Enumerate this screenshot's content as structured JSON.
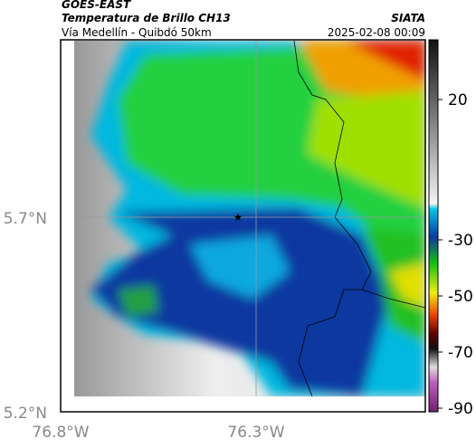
{
  "header": {
    "source": "GOES-EAST",
    "title": "Temperatura de Brillo CH13",
    "org": "SIATA",
    "subtitle": "Vía Medellín - Quibdó 50km",
    "datetime": "2025-02-08 00:09"
  },
  "map": {
    "lat_labels": [
      "5.7°N",
      "5.2°N"
    ],
    "lon_labels": [
      "76.8°W",
      "76.3°W"
    ]
  },
  "colorbar": {
    "ticks": [
      20,
      -30,
      -50,
      -70,
      -90
    ]
  }
}
